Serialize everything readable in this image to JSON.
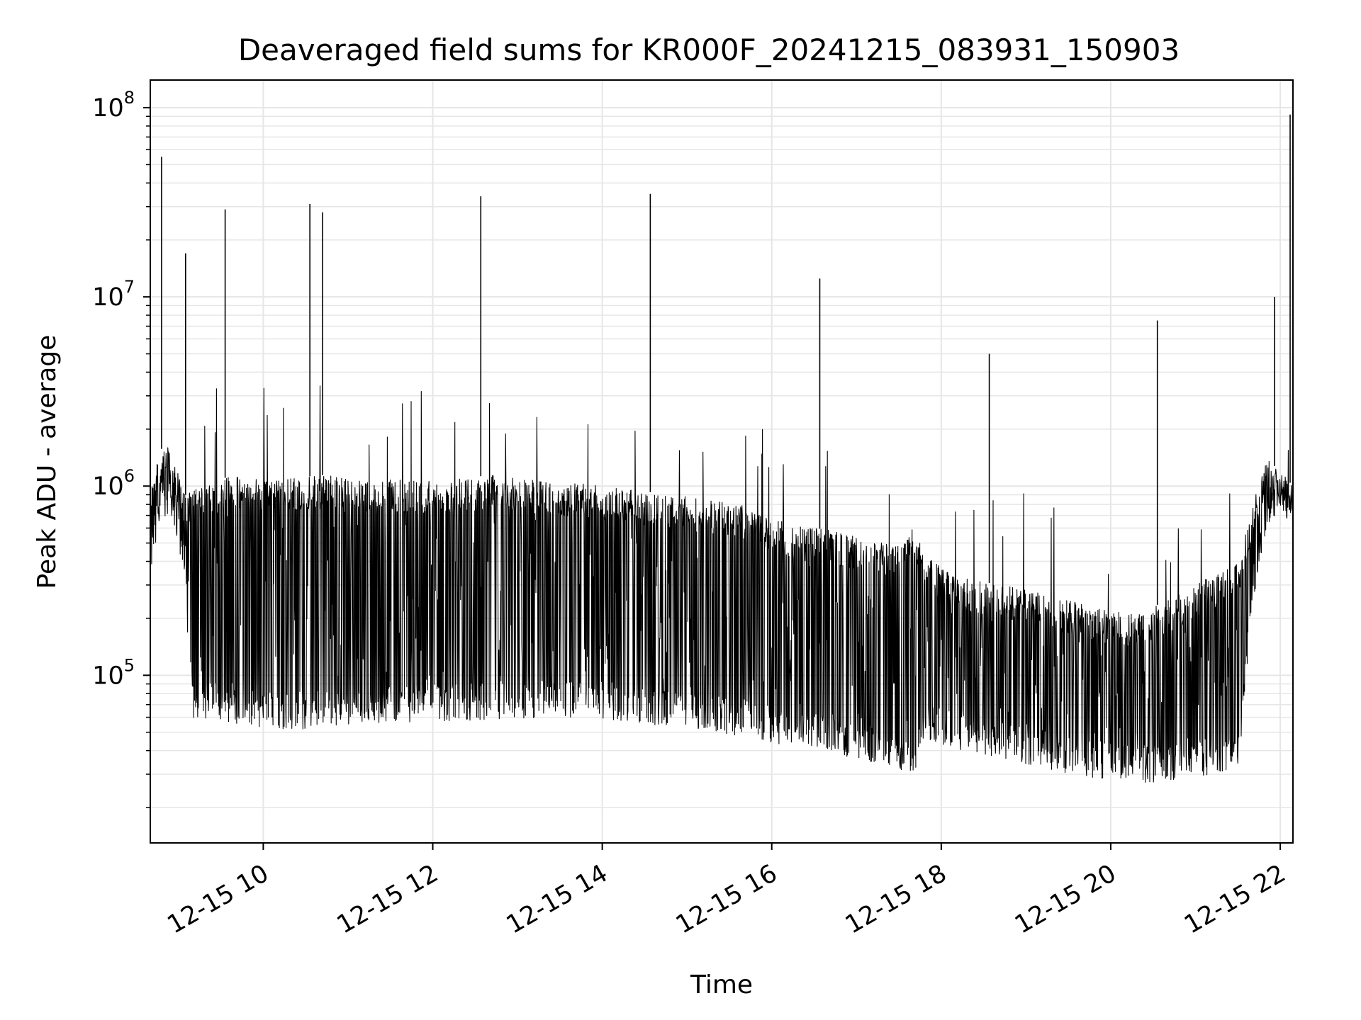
{
  "chart_data": {
    "type": "line",
    "title": "Deaveraged field sums for KR000F_20241215_083931_150903",
    "xlabel": "Time",
    "ylabel": "Peak ADU - average",
    "x_scale": "time",
    "y_scale": "log",
    "xlim": [
      "2024-12-15 08:40",
      "2024-12-15 22:09"
    ],
    "ylim": [
      13000,
      140000000
    ],
    "x_ticks": [
      "12-15 10",
      "12-15 12",
      "12-15 14",
      "12-15 16",
      "12-15 18",
      "12-15 20",
      "12-15 22"
    ],
    "y_ticks": [
      {
        "base": "10",
        "exp": "5",
        "value": 100000
      },
      {
        "base": "10",
        "exp": "6",
        "value": 1000000
      },
      {
        "base": "10",
        "exp": "7",
        "value": 10000000
      },
      {
        "base": "10",
        "exp": "8",
        "value": 100000000
      }
    ],
    "grid": true,
    "line_color": "#000000",
    "grid_color": "#e6e6e6",
    "series": [
      {
        "x": [
          "2024-12-15 08:40",
          "2024-12-15 08:45",
          "2024-12-15 08:50",
          "2024-12-15 08:55",
          "2024-12-15 09:00",
          "2024-12-15 09:05",
          "2024-12-15 09:10",
          "2024-12-15 09:15",
          "2024-12-15 09:20",
          "2024-12-15 09:25",
          "2024-12-15 09:30",
          "2024-12-15 09:40",
          "2024-12-15 09:50",
          "2024-12-15 10:00",
          "2024-12-15 10:15",
          "2024-12-15 10:30",
          "2024-12-15 10:45",
          "2024-12-15 11:00",
          "2024-12-15 11:15",
          "2024-12-15 11:30",
          "2024-12-15 11:45",
          "2024-12-15 12:00",
          "2024-12-15 12:15",
          "2024-12-15 12:30",
          "2024-12-15 12:45",
          "2024-12-15 13:00",
          "2024-12-15 13:15",
          "2024-12-15 13:30",
          "2024-12-15 13:45",
          "2024-12-15 14:00",
          "2024-12-15 14:15",
          "2024-12-15 14:30",
          "2024-12-15 14:45",
          "2024-12-15 15:00",
          "2024-12-15 15:15",
          "2024-12-15 15:30",
          "2024-12-15 15:45",
          "2024-12-15 16:00",
          "2024-12-15 16:15",
          "2024-12-15 16:30",
          "2024-12-15 16:45",
          "2024-12-15 17:00",
          "2024-12-15 17:15",
          "2024-12-15 17:30",
          "2024-12-15 17:40",
          "2024-12-15 17:50",
          "2024-12-15 18:00",
          "2024-12-15 18:15",
          "2024-12-15 18:30",
          "2024-12-15 18:45",
          "2024-12-15 19:00",
          "2024-12-15 19:15",
          "2024-12-15 19:30",
          "2024-12-15 19:45",
          "2024-12-15 20:00",
          "2024-12-15 20:15",
          "2024-12-15 20:30",
          "2024-12-15 20:45",
          "2024-12-15 21:00",
          "2024-12-15 21:15",
          "2024-12-15 21:30",
          "2024-12-15 21:40",
          "2024-12-15 21:50",
          "2024-12-15 22:00",
          "2024-12-15 22:09"
        ],
        "y_upper": [
          1000000,
          1400000,
          1700000,
          1500000,
          1200000,
          900000,
          950000,
          1050000,
          1100000,
          1050000,
          1100000,
          1120000,
          1100000,
          1100000,
          1100000,
          1120000,
          1150000,
          1100000,
          1050000,
          1080000,
          1100000,
          1100000,
          1080000,
          1120000,
          1150000,
          1100000,
          1080000,
          1050000,
          1030000,
          1000000,
          960000,
          940000,
          900000,
          880000,
          850000,
          820000,
          780000,
          680000,
          620000,
          600000,
          580000,
          540000,
          520000,
          500000,
          600000,
          420000,
          380000,
          330000,
          310000,
          300000,
          290000,
          270000,
          250000,
          230000,
          220000,
          210000,
          230000,
          260000,
          300000,
          350000,
          400000,
          800000,
          1400000,
          1200000,
          1000000
        ],
        "y_lower": [
          320000,
          550000,
          650000,
          700000,
          500000,
          250000,
          60000,
          55000,
          60000,
          58000,
          57000,
          55000,
          54000,
          53000,
          52000,
          52000,
          54000,
          55000,
          55000,
          56000,
          56000,
          57000,
          57000,
          58000,
          58000,
          58000,
          60000,
          60000,
          60000,
          59000,
          57000,
          55000,
          54000,
          52000,
          50000,
          48000,
          46000,
          44000,
          42000,
          40000,
          38000,
          36000,
          34000,
          32000,
          30000,
          45000,
          42000,
          40000,
          38000,
          36000,
          34000,
          32000,
          30000,
          29000,
          28000,
          27000,
          27000,
          28000,
          29000,
          30000,
          30000,
          200000,
          600000,
          700000,
          650000
        ]
      }
    ],
    "spikes": [
      {
        "x": "2024-12-15 08:48",
        "y": 55000000
      },
      {
        "x": "2024-12-15 09:05",
        "y": 17000000
      },
      {
        "x": "2024-12-15 09:33",
        "y": 29000000
      },
      {
        "x": "2024-12-15 10:33",
        "y": 31000000
      },
      {
        "x": "2024-12-15 10:42",
        "y": 28000000
      },
      {
        "x": "2024-12-15 12:34",
        "y": 34000000
      },
      {
        "x": "2024-12-15 14:34",
        "y": 35000000
      },
      {
        "x": "2024-12-15 16:34",
        "y": 12500000
      },
      {
        "x": "2024-12-15 18:34",
        "y": 5000000
      },
      {
        "x": "2024-12-15 20:33",
        "y": 7500000
      },
      {
        "x": "2024-12-15 21:56",
        "y": 10000000
      },
      {
        "x": "2024-12-15 22:07",
        "y": 92000000
      }
    ]
  }
}
